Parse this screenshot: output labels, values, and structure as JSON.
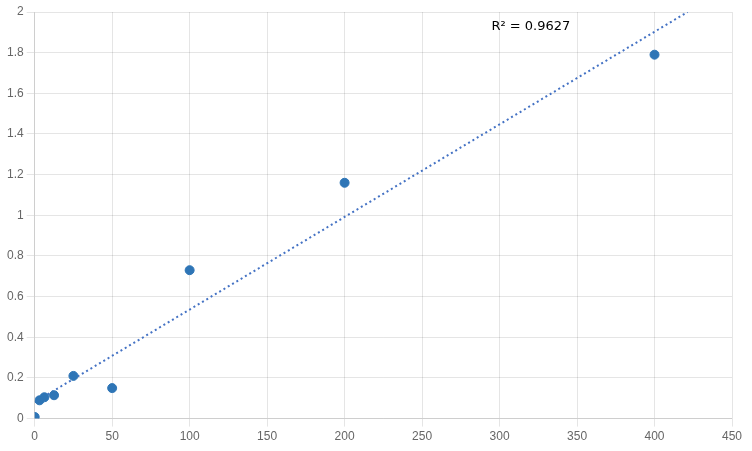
{
  "chart_data": {
    "type": "scatter",
    "x": [
      0,
      3.125,
      6.25,
      12.5,
      25,
      50,
      100,
      200,
      400
    ],
    "y": [
      0.008,
      0.09,
      0.105,
      0.115,
      0.21,
      0.15,
      0.73,
      1.16,
      1.79
    ],
    "color": "#2E75B6",
    "trend_line": {
      "x": [
        0,
        421.35
      ],
      "y": [
        0.081,
        2
      ],
      "color": "#4472C4",
      "line_style": "dotted"
    },
    "annotations": [
      "R² = 0.9627"
    ],
    "xlim": [
      0,
      450
    ],
    "ylim": [
      0,
      2
    ],
    "xticks": [
      0,
      50,
      100,
      150,
      200,
      250,
      300,
      350,
      400,
      450
    ],
    "yticks": [
      0,
      0.2,
      0.4,
      0.6,
      0.8,
      1,
      1.2,
      1.4,
      1.6,
      1.8,
      2
    ],
    "grid": true
  }
}
